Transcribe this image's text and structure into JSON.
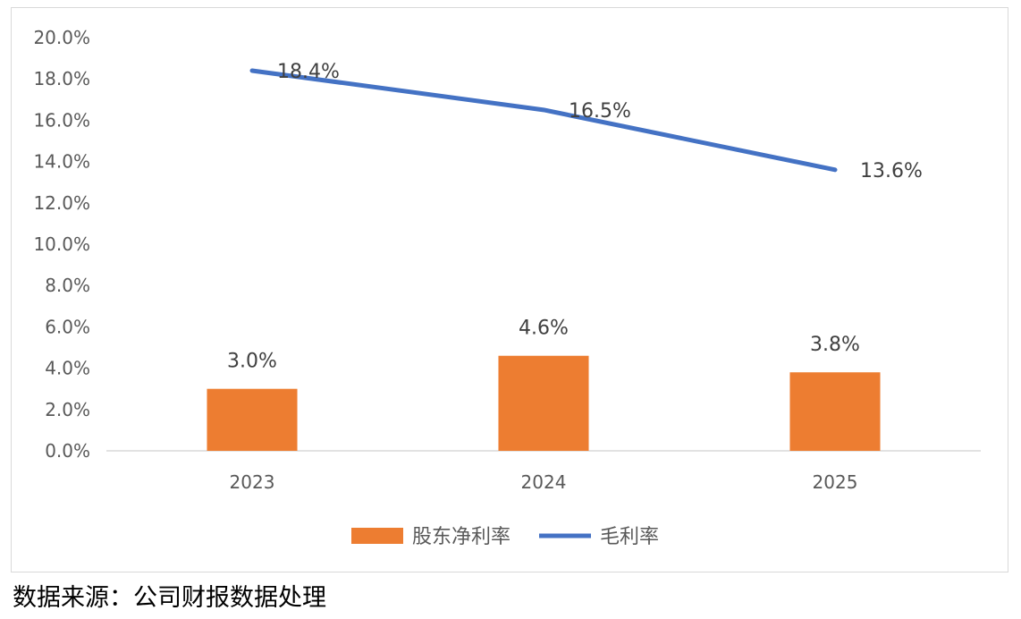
{
  "chart_data": {
    "type": "bar",
    "categories": [
      "2023",
      "2024",
      "2025"
    ],
    "series": [
      {
        "name": "股东净利率",
        "type": "bar",
        "values": [
          3.0,
          4.6,
          3.8
        ],
        "labels": [
          "3.0%",
          "4.6%",
          "3.8%"
        ],
        "color": "#ED7D31"
      },
      {
        "name": "毛利率",
        "type": "line",
        "values": [
          18.4,
          16.5,
          13.6
        ],
        "labels": [
          "18.4%",
          "16.5%",
          "13.6%"
        ],
        "color": "#4472C4"
      }
    ],
    "ylim": [
      0,
      20
    ],
    "y_ticks": [
      "0.0%",
      "2.0%",
      "4.0%",
      "6.0%",
      "8.0%",
      "10.0%",
      "12.0%",
      "14.0%",
      "16.0%",
      "18.0%",
      "20.0%"
    ],
    "grid": false,
    "legend_position": "bottom"
  },
  "source_note": "数据来源：公司财报数据处理"
}
